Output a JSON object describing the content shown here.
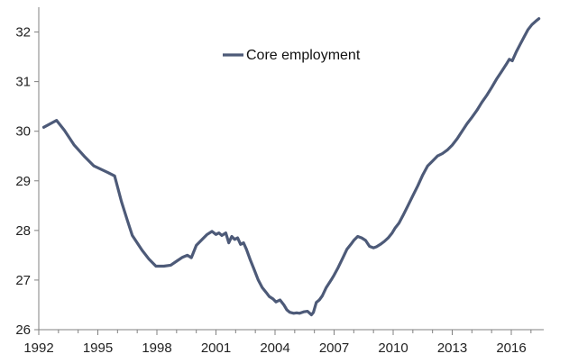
{
  "chart_data": {
    "type": "line",
    "title": "",
    "xlabel": "",
    "ylabel": "",
    "xlim": [
      1992,
      2017.8
    ],
    "ylim": [
      26,
      32.5
    ],
    "x_ticks": [
      "1992",
      "1995",
      "1998",
      "2001",
      "2004",
      "2007",
      "2010",
      "2013",
      "2016"
    ],
    "y_ticks": [
      "26",
      "27",
      "28",
      "29",
      "30",
      "31",
      "32"
    ],
    "grid": false,
    "legend": {
      "position": "top-center"
    },
    "series_color": "#4d5a78",
    "series": [
      {
        "name": "Core employment",
        "x": [
          1992.25,
          1992.9,
          1993.3,
          1993.8,
          1994.3,
          1994.8,
          1995.5,
          1995.85,
          1996.2,
          1996.5,
          1996.75,
          1997.25,
          1997.6,
          1997.95,
          1998.35,
          1998.7,
          1999.0,
          1999.3,
          1999.55,
          1999.75,
          2000.0,
          2000.3,
          2000.55,
          2000.8,
          2001.0,
          2001.15,
          2001.3,
          2001.5,
          2001.65,
          2001.8,
          2001.95,
          2002.1,
          2002.25,
          2002.4,
          2002.55,
          2002.75,
          2002.95,
          2003.15,
          2003.35,
          2003.55,
          2003.7,
          2003.9,
          2004.05,
          2004.25,
          2004.45,
          2004.6,
          2004.75,
          2004.95,
          2005.1,
          2005.25,
          2005.45,
          2005.65,
          2005.85,
          2005.95,
          2006.1,
          2006.25,
          2006.4,
          2006.6,
          2006.85,
          2007.0,
          2007.2,
          2007.45,
          2007.65,
          2007.85,
          2008.0,
          2008.2,
          2008.4,
          2008.6,
          2008.8,
          2009.0,
          2009.15,
          2009.35,
          2009.55,
          2009.75,
          2009.95,
          2010.1,
          2010.3,
          2010.5,
          2010.75,
          2011.0,
          2011.25,
          2011.5,
          2011.75,
          2012.0,
          2012.25,
          2012.5,
          2012.75,
          2013.0,
          2013.25,
          2013.5,
          2013.75,
          2014.0,
          2014.25,
          2014.5,
          2014.75,
          2015.0,
          2015.25,
          2015.5,
          2015.75,
          2015.9,
          2016.05,
          2016.25,
          2016.45,
          2016.65,
          2016.85,
          2017.05,
          2017.25,
          2017.4
        ],
        "y": [
          30.08,
          30.22,
          30.02,
          29.72,
          29.5,
          29.3,
          29.17,
          29.1,
          28.58,
          28.2,
          27.9,
          27.6,
          27.42,
          27.28,
          27.28,
          27.3,
          27.38,
          27.46,
          27.5,
          27.45,
          27.7,
          27.82,
          27.92,
          27.98,
          27.92,
          27.95,
          27.9,
          27.95,
          27.75,
          27.88,
          27.82,
          27.85,
          27.72,
          27.75,
          27.62,
          27.4,
          27.2,
          27.0,
          26.85,
          26.75,
          26.67,
          26.62,
          26.56,
          26.6,
          26.5,
          26.4,
          26.35,
          26.33,
          26.34,
          26.33,
          26.36,
          26.37,
          26.3,
          26.35,
          26.55,
          26.6,
          26.68,
          26.85,
          27.0,
          27.1,
          27.25,
          27.45,
          27.62,
          27.72,
          27.8,
          27.88,
          27.85,
          27.8,
          27.68,
          27.65,
          27.67,
          27.72,
          27.78,
          27.85,
          27.95,
          28.05,
          28.15,
          28.3,
          28.5,
          28.7,
          28.9,
          29.12,
          29.3,
          29.4,
          29.5,
          29.55,
          29.62,
          29.72,
          29.85,
          30.0,
          30.15,
          30.28,
          30.42,
          30.58,
          30.72,
          30.88,
          31.05,
          31.2,
          31.35,
          31.45,
          31.42,
          31.6,
          31.75,
          31.9,
          32.05,
          32.15,
          32.22,
          32.27
        ]
      }
    ]
  }
}
